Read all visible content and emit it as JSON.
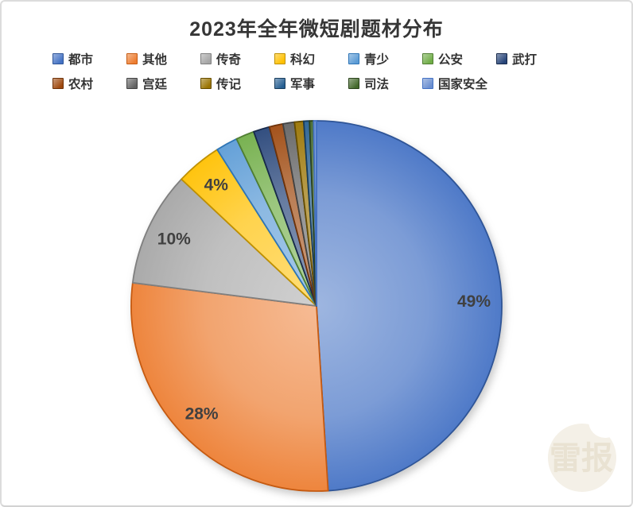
{
  "title": "2023年全年微短剧题材分布",
  "watermark": {
    "text": "雷报"
  },
  "chart_data": {
    "type": "pie",
    "title": "2023年全年微短剧题材分布",
    "start_angle_deg": 0,
    "direction": "clockwise",
    "legend_position": "top",
    "legend_rows": [
      7,
      6
    ],
    "label_radius_fraction": 0.85,
    "label_color": "#404040",
    "categories": [
      "都市",
      "其他",
      "传奇",
      "科幻",
      "青少",
      "公安",
      "武打",
      "农村",
      "宫廷",
      "传记",
      "军事",
      "司法",
      "国家安全"
    ],
    "values": [
      49,
      28,
      10,
      4,
      1.9,
      1.6,
      1.4,
      1.2,
      1.0,
      0.8,
      0.5,
      0.35,
      0.25
    ],
    "data_labels": [
      "49%",
      "28%",
      "10%",
      "4%",
      "",
      "",
      "",
      "",
      "",
      "",
      "",
      "",
      ""
    ],
    "colors": [
      "#4472C4",
      "#ED7D31",
      "#A5A5A5",
      "#FFC000",
      "#5B9BD5",
      "#70AD47",
      "#264478",
      "#9E480E",
      "#636363",
      "#997300",
      "#255E91",
      "#43682B",
      "#698ED0"
    ],
    "border_colors": [
      "#2F5597",
      "#C55A11",
      "#7F7F7F",
      "#BF9000",
      "#2E75B6",
      "#507E32",
      "#17294A",
      "#6E3209",
      "#424242",
      "#664D00",
      "#173C5C",
      "#2B431C",
      "#4472C4"
    ]
  }
}
